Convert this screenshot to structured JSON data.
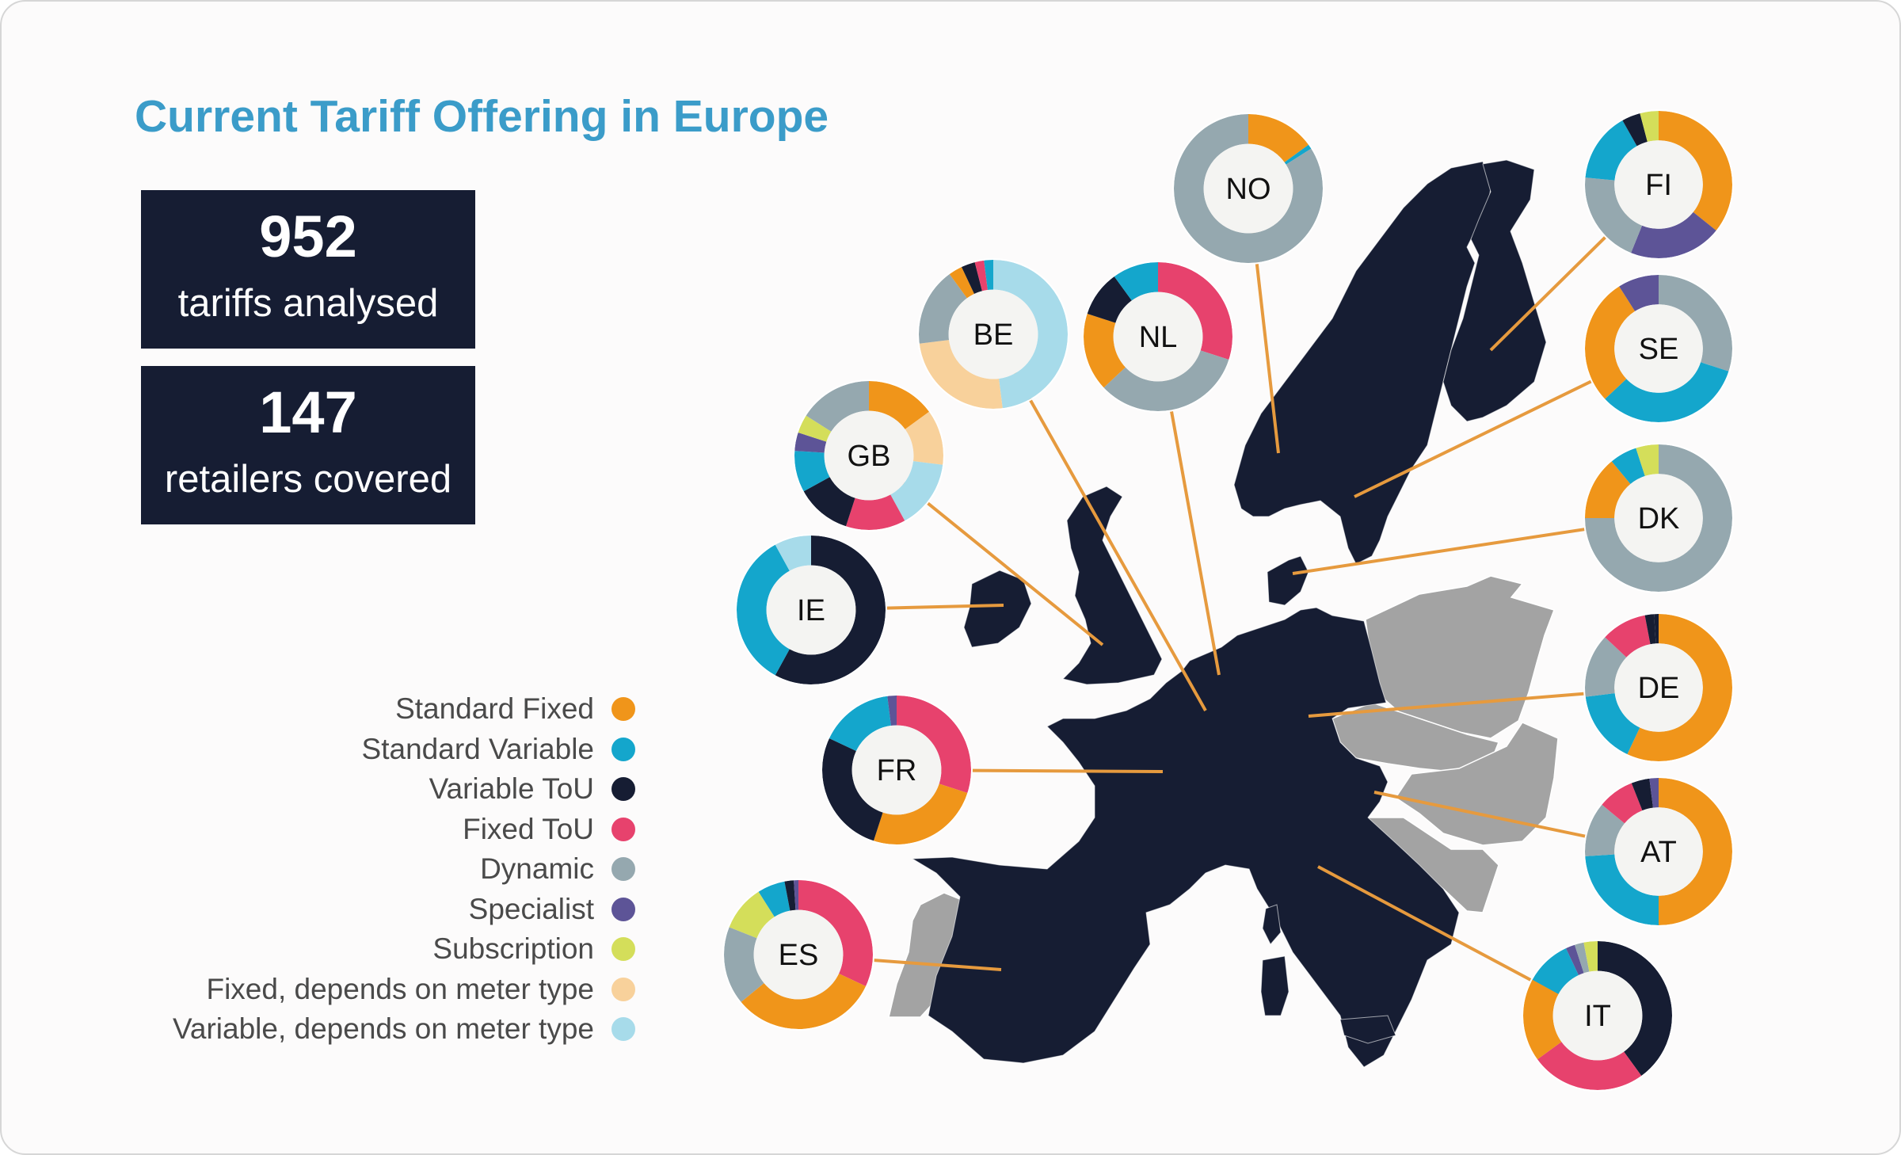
{
  "title": "Current Tariff Offering in Europe",
  "stats": [
    {
      "value": "952",
      "label": "tariffs analysed"
    },
    {
      "value": "147",
      "label": "retailers covered"
    }
  ],
  "categories": [
    {
      "key": "standard_fixed",
      "label": "Standard Fixed",
      "color": "#f0951a"
    },
    {
      "key": "standard_variable",
      "label": "Standard Variable",
      "color": "#14a6cc"
    },
    {
      "key": "variable_tou",
      "label": "Variable ToU",
      "color": "#161d33"
    },
    {
      "key": "fixed_tou",
      "label": "Fixed ToU",
      "color": "#e7426d"
    },
    {
      "key": "dynamic",
      "label": "Dynamic",
      "color": "#95a8af"
    },
    {
      "key": "specialist",
      "label": "Specialist",
      "color": "#5d5497"
    },
    {
      "key": "subscription",
      "label": "Subscription",
      "color": "#d4de5a"
    },
    {
      "key": "fixed_meter",
      "label": "Fixed, depends on meter type",
      "color": "#f8d19b"
    },
    {
      "key": "variable_meter",
      "label": "Variable, depends on meter type",
      "color": "#a7dbea"
    }
  ],
  "map_colors": {
    "covered": "#161d33",
    "not_covered": "#a3a3a3",
    "leader_line": "#e69a3e",
    "donut_center": "#f4f4f2"
  },
  "countries": [
    {
      "code": "NO",
      "shares": {
        "standard_fixed": 0.15,
        "standard_variable": 0.01,
        "dynamic": 0.84
      }
    },
    {
      "code": "FI",
      "shares": {
        "standard_fixed": 0.35,
        "specialist": 0.2,
        "dynamic": 0.2,
        "standard_variable": 0.15,
        "variable_tou": 0.04,
        "subscription": 0.04
      }
    },
    {
      "code": "SE",
      "shares": {
        "dynamic": 0.3,
        "standard_variable": 0.33,
        "standard_fixed": 0.28,
        "specialist": 0.09
      }
    },
    {
      "code": "BE",
      "shares": {
        "variable_meter": 0.48,
        "fixed_meter": 0.25,
        "dynamic": 0.17,
        "standard_fixed": 0.03,
        "variable_tou": 0.03,
        "fixed_tou": 0.02,
        "standard_variable": 0.02
      }
    },
    {
      "code": "NL",
      "shares": {
        "fixed_tou": 0.3,
        "dynamic": 0.33,
        "standard_fixed": 0.17,
        "variable_tou": 0.1,
        "standard_variable": 0.1
      }
    },
    {
      "code": "GB",
      "shares": {
        "standard_fixed": 0.15,
        "fixed_meter": 0.12,
        "variable_meter": 0.15,
        "fixed_tou": 0.13,
        "variable_tou": 0.12,
        "standard_variable": 0.09,
        "specialist": 0.04,
        "subscription": 0.04,
        "dynamic": 0.16
      }
    },
    {
      "code": "DK",
      "shares": {
        "dynamic": 0.75,
        "standard_fixed": 0.14,
        "standard_variable": 0.06,
        "subscription": 0.05
      }
    },
    {
      "code": "IE",
      "shares": {
        "variable_tou": 0.58,
        "standard_variable": 0.34,
        "variable_meter": 0.08
      }
    },
    {
      "code": "DE",
      "shares": {
        "standard_fixed": 0.57,
        "standard_variable": 0.16,
        "dynamic": 0.14,
        "fixed_tou": 0.1,
        "variable_tou": 0.02,
        "dynamic_2": 0.01
      }
    },
    {
      "code": "FR",
      "shares": {
        "fixed_tou": 0.3,
        "standard_fixed": 0.25,
        "variable_tou": 0.27,
        "standard_variable": 0.16,
        "specialist": 0.02
      }
    },
    {
      "code": "AT",
      "shares": {
        "standard_fixed": 0.5,
        "standard_variable": 0.24,
        "dynamic": 0.12,
        "fixed_tou": 0.08,
        "variable_tou": 0.04,
        "specialist": 0.02
      }
    },
    {
      "code": "ES",
      "shares": {
        "fixed_tou": 0.32,
        "standard_fixed": 0.32,
        "dynamic": 0.17,
        "subscription": 0.1,
        "standard_variable": 0.06,
        "variable_tou": 0.02,
        "specialist": 0.01
      }
    },
    {
      "code": "IT",
      "shares": {
        "variable_tou": 0.4,
        "fixed_tou": 0.25,
        "standard_fixed": 0.18,
        "standard_variable": 0.1,
        "specialist": 0.02,
        "dynamic": 0.02,
        "subscription": 0.03
      }
    }
  ]
}
